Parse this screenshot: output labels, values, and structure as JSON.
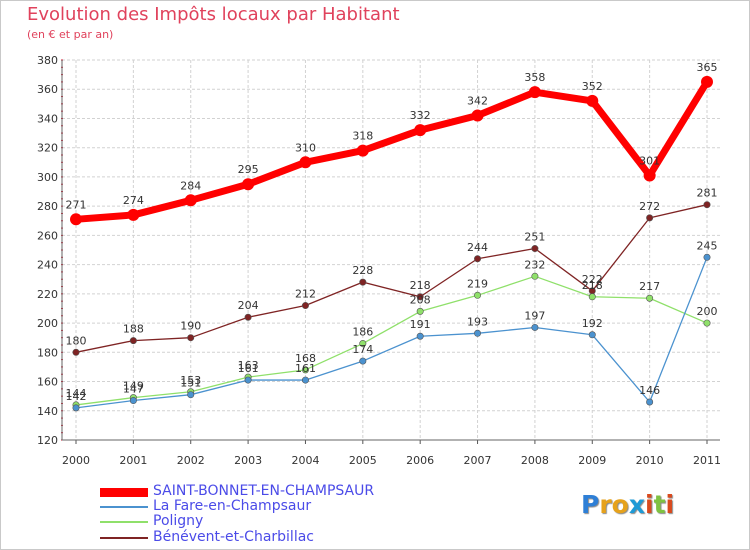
{
  "header": {
    "title": "Evolution des Impôts locaux par Habitant",
    "subtitle": "(en € et par an)"
  },
  "colors": {
    "title": "#e0425c",
    "grid": "#d2d2d2",
    "axis_tick": "#cc1b33",
    "legend_text": "#4b4be8"
  },
  "chart_data": {
    "type": "line",
    "title": "Evolution des Impôts locaux par Habitant",
    "subtitle": "(en € et par an)",
    "x": [
      "2000",
      "2001",
      "2002",
      "2003",
      "2004",
      "2005",
      "2006",
      "2007",
      "2008",
      "2009",
      "2010",
      "2011"
    ],
    "ylim": [
      120,
      380
    ],
    "yticks": [
      120,
      140,
      160,
      180,
      200,
      220,
      240,
      260,
      280,
      300,
      320,
      340,
      360,
      380
    ],
    "grid": true,
    "legend_position": "bottom-left",
    "series": [
      {
        "name": "SAINT-BONNET-EN-CHAMPSAUR",
        "color": "#ff0000",
        "values": [
          271,
          274,
          284,
          295,
          310,
          318,
          332,
          342,
          358,
          352,
          301,
          365
        ]
      },
      {
        "name": "La Fare-en-Champsaur",
        "color": "#4b92cf",
        "values": [
          142,
          147,
          151,
          161,
          161,
          174,
          191,
          193,
          197,
          192,
          146,
          245
        ]
      },
      {
        "name": "Poligny",
        "color": "#8fe06a",
        "values": [
          144,
          149,
          153,
          163,
          168,
          186,
          208,
          219,
          232,
          218,
          217,
          200
        ]
      },
      {
        "name": "Bénévent-et-Charbillac",
        "color": "#7f2424",
        "values": [
          180,
          188,
          190,
          204,
          212,
          228,
          218,
          244,
          251,
          222,
          272,
          281
        ]
      }
    ],
    "value_labels": [
      [
        "271",
        "274",
        "284",
        "295",
        "310",
        "318",
        "332",
        "342",
        "358",
        "352",
        "301",
        "365"
      ],
      [
        "142",
        "147",
        "151",
        "161",
        "161",
        "174",
        "191",
        "193",
        "197",
        "192",
        "146",
        "245"
      ],
      [
        "144",
        "149",
        "153",
        "163",
        "168",
        "186",
        "208",
        "219",
        "232",
        "218",
        "217",
        "200"
      ],
      [
        "180",
        "188",
        "190",
        "204",
        "212",
        "228",
        "218",
        "244",
        "251",
        "222",
        "272",
        "281"
      ]
    ]
  },
  "legend": {
    "items": [
      {
        "label": "SAINT-BONNET-EN-CHAMPSAUR",
        "color": "#ff0000"
      },
      {
        "label": "La Fare-en-Champsaur",
        "color": "#4b92cf"
      },
      {
        "label": "Poligny",
        "color": "#8fe06a"
      },
      {
        "label": "Bénévent-et-Charbillac",
        "color": "#7f2424"
      }
    ]
  },
  "logo": {
    "letters": [
      "P",
      "r",
      "o",
      "x",
      "i",
      "t",
      "i"
    ],
    "colors": [
      "#2e7fd6",
      "#e6a21c",
      "#e6a21c",
      "#1e9ad6",
      "#d94a1e",
      "#7fc241",
      "#d94a1e"
    ]
  }
}
